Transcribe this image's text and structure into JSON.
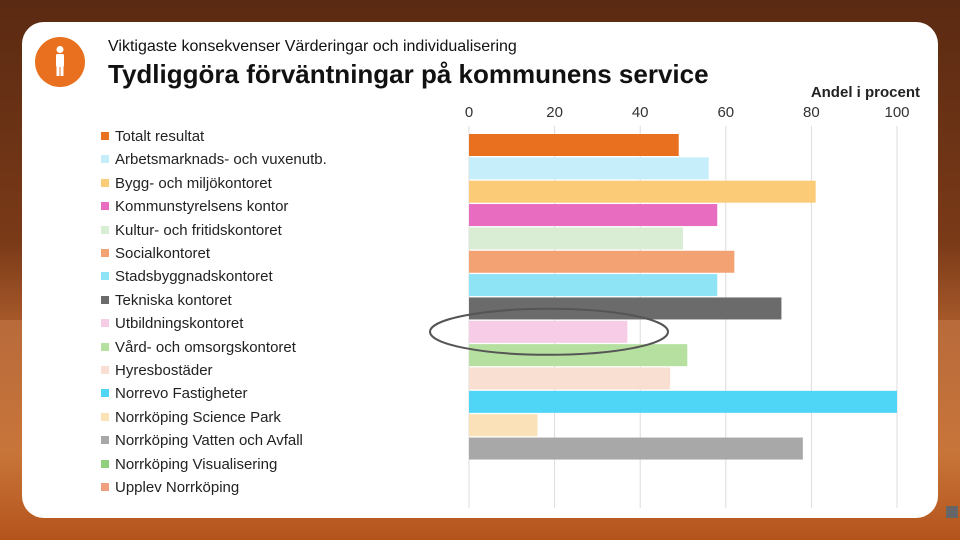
{
  "header": {
    "subtitle": "Viktigaste konsekvenser Värderingar och individualisering",
    "title": "Tydliggöra förväntningar på kommunens service",
    "logo_icon": "person-icon"
  },
  "chart_data": {
    "type": "bar",
    "orientation": "horizontal",
    "title": "Tydliggöra förväntningar på kommunens service",
    "xlabel": "Andel i procent",
    "ylabel": "",
    "xlim": [
      0,
      100
    ],
    "x_ticks": [
      "0",
      "20",
      "40",
      "60",
      "80",
      "100"
    ],
    "gridlines": true,
    "legend_position": "left",
    "categories": [
      "Totalt resultat",
      "Arbetsmarknads- och vuxenutb.",
      "Bygg- och miljökontoret",
      "Kommunstyrelsens kontor",
      "Kultur- och fritidskontoret",
      "Socialkontoret",
      "Stadsbyggnadskontoret",
      "Tekniska kontoret",
      "Utbildningskontoret",
      "Vård- och omsorgskontoret",
      "Hyresbostäder",
      "Norrevo Fastigheter",
      "Norrköping Science Park",
      "Norrköping Vatten och Avfall",
      "Norrköping Visualisering",
      "Upplev Norrköping"
    ],
    "values": [
      49,
      56,
      81,
      58,
      50,
      62,
      58,
      73,
      37,
      51,
      47,
      100,
      16,
      78,
      null,
      null
    ],
    "colors": [
      "#e8701e",
      "#c6eefa",
      "#fccb78",
      "#e86cbf",
      "#d9ecd4",
      "#f3a274",
      "#8ee3f5",
      "#6b6b6b",
      "#f7cce6",
      "#b5e0a0",
      "#f9dfd2",
      "#4fd5f5",
      "#fbe1b8",
      "#a8a8a8",
      "#8fd07e",
      "#f0a07c"
    ],
    "highlight": "Utbildningskontoret"
  }
}
